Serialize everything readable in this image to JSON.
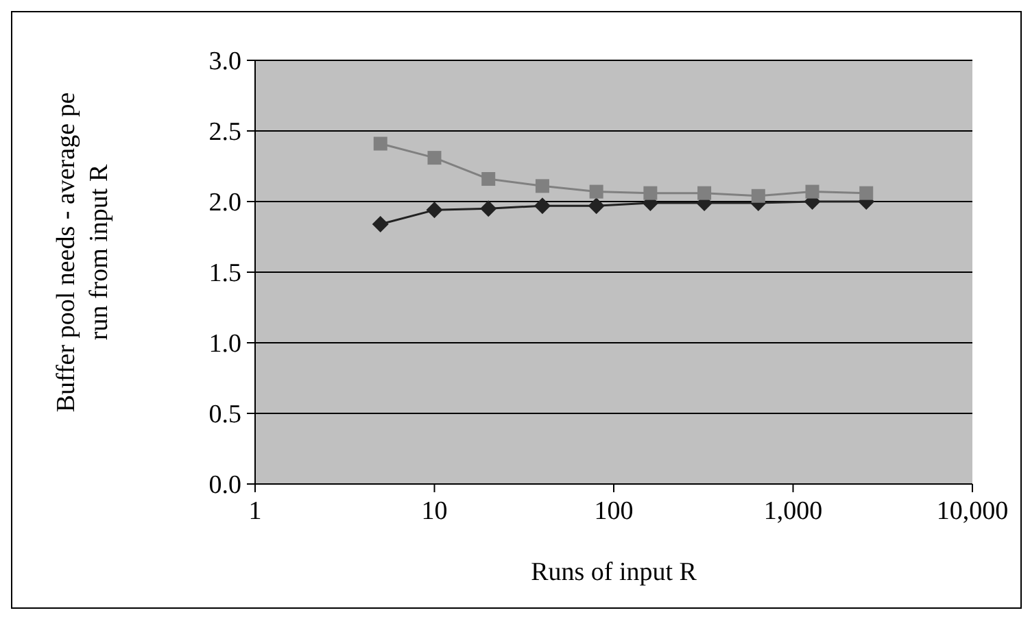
{
  "chart_data": {
    "type": "line",
    "xlabel": "Runs of input R",
    "ylabel": "Buffer pool needs - average pe run from input R",
    "log": "x",
    "x": [
      5,
      10,
      20,
      40,
      80,
      160,
      320,
      640,
      1280,
      2560
    ],
    "series": [
      {
        "color": "#222222",
        "marker": "diamond",
        "values": [
          1.84,
          1.94,
          1.95,
          1.97,
          1.97,
          1.99,
          1.99,
          1.99,
          2.0,
          2.0
        ]
      },
      {
        "color": "#808080",
        "marker": "square",
        "values": [
          2.41,
          2.31,
          2.16,
          2.11,
          2.07,
          2.06,
          2.06,
          2.04,
          2.07,
          2.06
        ]
      }
    ],
    "xlim": [
      1,
      10000
    ],
    "xticks": [
      1,
      10,
      100,
      {
        "value": 1000,
        "label": "1,000"
      },
      {
        "value": 10000,
        "label": "10,000"
      }
    ],
    "ylim": [
      0,
      3
    ],
    "yticks": [
      {
        "value": 0,
        "label": "0.0"
      },
      {
        "value": 0.5,
        "label": "0.5"
      },
      {
        "value": 1,
        "label": "1.0"
      },
      {
        "value": 1.5,
        "label": "1.5"
      },
      {
        "value": 2,
        "label": "2.0"
      },
      {
        "value": 2.5,
        "label": "2.5"
      },
      {
        "value": 3,
        "label": "3.0"
      }
    ],
    "grid": "y"
  }
}
